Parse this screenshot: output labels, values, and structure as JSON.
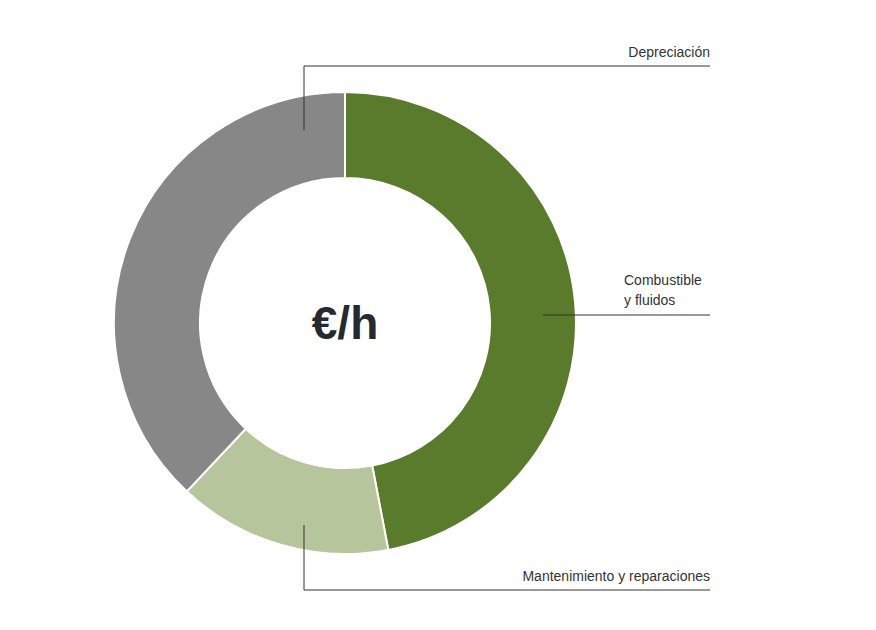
{
  "chart_data": {
    "type": "donut",
    "title": "€/h",
    "categories": [
      "Combustible y fluidos",
      "Mantenimiento y reparaciones",
      "Depreciación"
    ],
    "values": [
      47,
      15,
      38
    ],
    "colors": [
      "#5a7b2c",
      "#b7c59c",
      "#878787"
    ],
    "legend": false
  }
}
